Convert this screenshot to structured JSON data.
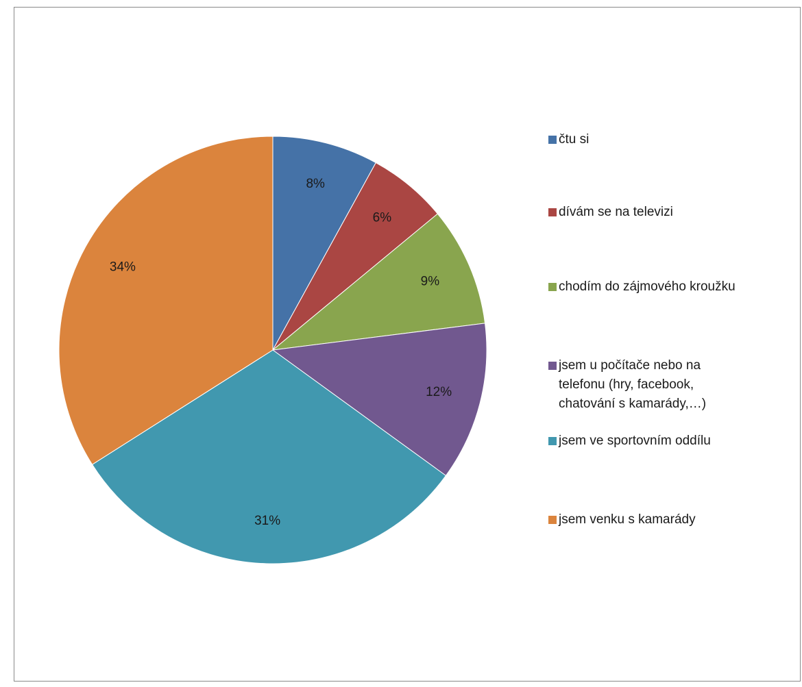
{
  "chart_data": {
    "type": "pie",
    "title": "",
    "legend_position": "right",
    "start_angle_deg": 0,
    "direction": "clockwise",
    "slices": [
      {
        "label": "čtu si",
        "value": 8,
        "value_label": "8%",
        "color": "#4572A7"
      },
      {
        "label": "dívám se na televizi",
        "value": 6,
        "value_label": "6%",
        "color": "#AA4643"
      },
      {
        "label": "chodím do zájmového kroužku",
        "value": 9,
        "value_label": "9%",
        "color": "#89A54E"
      },
      {
        "label": "jsem u počítače nebo na\ntelefonu (hry, facebook,\nchatování s kamarády,…)",
        "value": 12,
        "value_label": "12%",
        "color": "#71588F"
      },
      {
        "label": "jsem ve sportovním oddílu",
        "value": 31,
        "value_label": "31%",
        "color": "#4198AF"
      },
      {
        "label": "jsem venku s kamarády",
        "value": 34,
        "value_label": "34%",
        "color": "#DB843D"
      }
    ]
  }
}
